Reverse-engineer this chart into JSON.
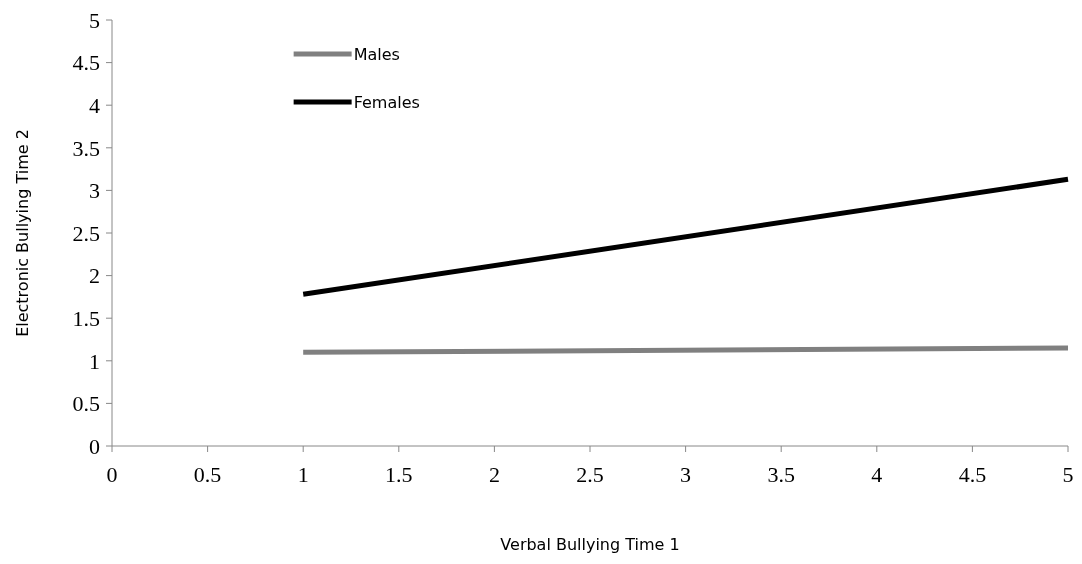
{
  "chart_data": {
    "type": "line",
    "xlabel": "Verbal Bullying Time 1",
    "ylabel": "Electronic Bullying Time 2",
    "xlim": [
      0,
      5
    ],
    "xticks": [
      0,
      0.5,
      1,
      1.5,
      2,
      2.5,
      3,
      3.5,
      4,
      4.5,
      5
    ],
    "ylim": [
      0,
      5
    ],
    "yticks": [
      0,
      0.5,
      1,
      1.5,
      2,
      2.5,
      3,
      3.5,
      4,
      4.5,
      5
    ],
    "x": [
      1,
      5
    ],
    "series": [
      {
        "name": "Males",
        "color": "#808080",
        "values": [
          1.1,
          1.15
        ]
      },
      {
        "name": "Females",
        "color": "#000000",
        "values": [
          1.78,
          3.13
        ]
      }
    ],
    "legend": "top left",
    "grid": false,
    "marker": "none",
    "line_style": "solid"
  }
}
